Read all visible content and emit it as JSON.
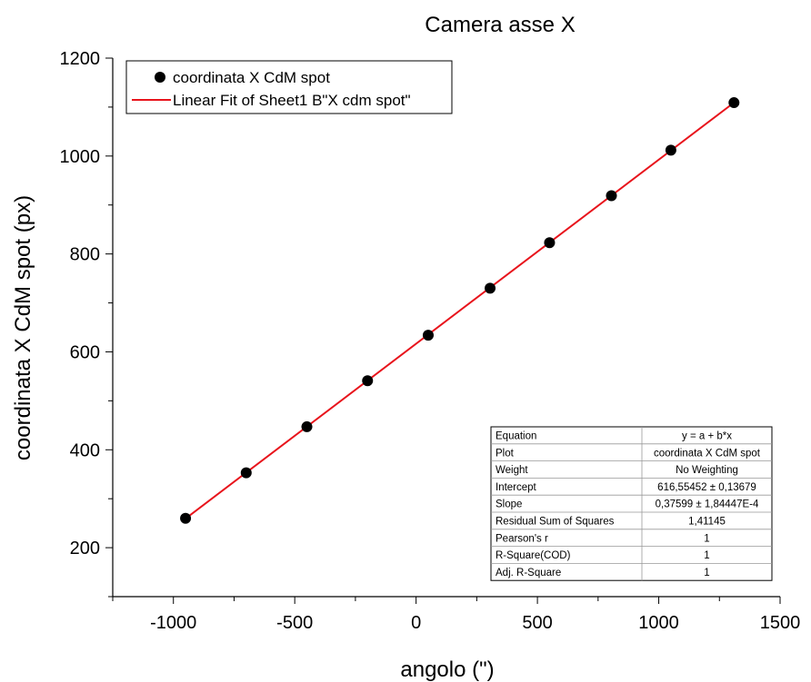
{
  "chart_data": {
    "type": "scatter",
    "title": "Camera asse X",
    "xlabel": "angolo (\")",
    "ylabel": "coordinata X CdM spot (px)",
    "xlim": [
      -1250,
      1500
    ],
    "ylim": [
      100,
      1200
    ],
    "xticks": [
      -1000,
      -500,
      0,
      500,
      1000,
      1500
    ],
    "yticks": [
      200,
      400,
      600,
      800,
      1000,
      1200
    ],
    "grid": false,
    "legend_position": "top-left",
    "series": [
      {
        "name": "coordinata X CdM spot",
        "kind": "scatter",
        "color": "#000000",
        "x": [
          -950,
          -700,
          -450,
          -200,
          50,
          305,
          550,
          805,
          1050,
          1310
        ],
        "y": [
          260,
          353,
          447,
          541,
          634,
          730,
          823,
          919,
          1012,
          1109
        ]
      },
      {
        "name": "Linear Fit of Sheet1 B\"X cdm spot\"",
        "kind": "line",
        "color": "#e8141c",
        "intercept": 616.55452,
        "slope": 0.37599,
        "x_range": [
          -950,
          1310
        ]
      }
    ],
    "fit_table": [
      {
        "label": "Equation",
        "value": "y = a + b*x"
      },
      {
        "label": "Plot",
        "value": "coordinata X CdM spot"
      },
      {
        "label": "Weight",
        "value": "No Weighting"
      },
      {
        "label": "Intercept",
        "value": "616,55452 ± 0,13679"
      },
      {
        "label": "Slope",
        "value": "0,37599 ± 1,84447E-4"
      },
      {
        "label": "Residual Sum of Squares",
        "value": "1,41145"
      },
      {
        "label": "Pearson's r",
        "value": "1"
      },
      {
        "label": "R-Square(COD)",
        "value": "1"
      },
      {
        "label": "Adj. R-Square",
        "value": "1"
      }
    ]
  }
}
